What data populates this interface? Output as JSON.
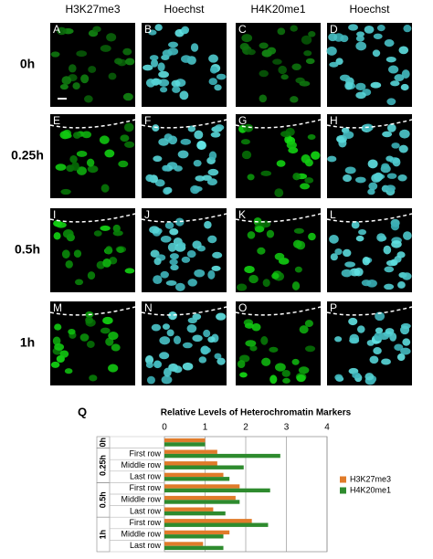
{
  "figure": {
    "columns": [
      "H3K27me3",
      "Hoechst",
      "H4K20me1",
      "Hoechst"
    ],
    "rows": [
      "0h",
      "0.25h",
      "0.5h",
      "1h"
    ],
    "panels": [
      "A",
      "B",
      "C",
      "D",
      "E",
      "F",
      "G",
      "H",
      "I",
      "J",
      "K",
      "L",
      "M",
      "N",
      "O",
      "P"
    ],
    "label": "Q"
  },
  "chart_data": {
    "type": "bar",
    "orientation": "horizontal",
    "title": "Relative Levels of Heterochromatin Markers",
    "groups": [
      {
        "name": "0h",
        "categories": [
          null
        ]
      },
      {
        "name": "0.25h",
        "categories": [
          "First row",
          "Middle row",
          "Last row"
        ]
      },
      {
        "name": "0.5h",
        "categories": [
          "First row",
          "Middle row",
          "Last row"
        ]
      },
      {
        "name": "1h",
        "categories": [
          "First row",
          "Middle row",
          "Last row"
        ]
      }
    ],
    "series": [
      {
        "name": "H3K27me3",
        "color": "#e07b2a",
        "values": [
          1.0,
          1.3,
          1.3,
          1.45,
          1.85,
          1.75,
          1.2,
          2.15,
          1.6,
          0.95
        ]
      },
      {
        "name": "H4K20me1",
        "color": "#2e8b2e",
        "values": [
          1.0,
          2.85,
          1.95,
          1.6,
          2.6,
          1.85,
          1.5,
          2.55,
          1.45,
          1.45
        ]
      }
    ],
    "xlim": [
      0,
      4
    ],
    "xticks": [
      0,
      1,
      2,
      3,
      4
    ],
    "grid": true,
    "legend": "right"
  }
}
